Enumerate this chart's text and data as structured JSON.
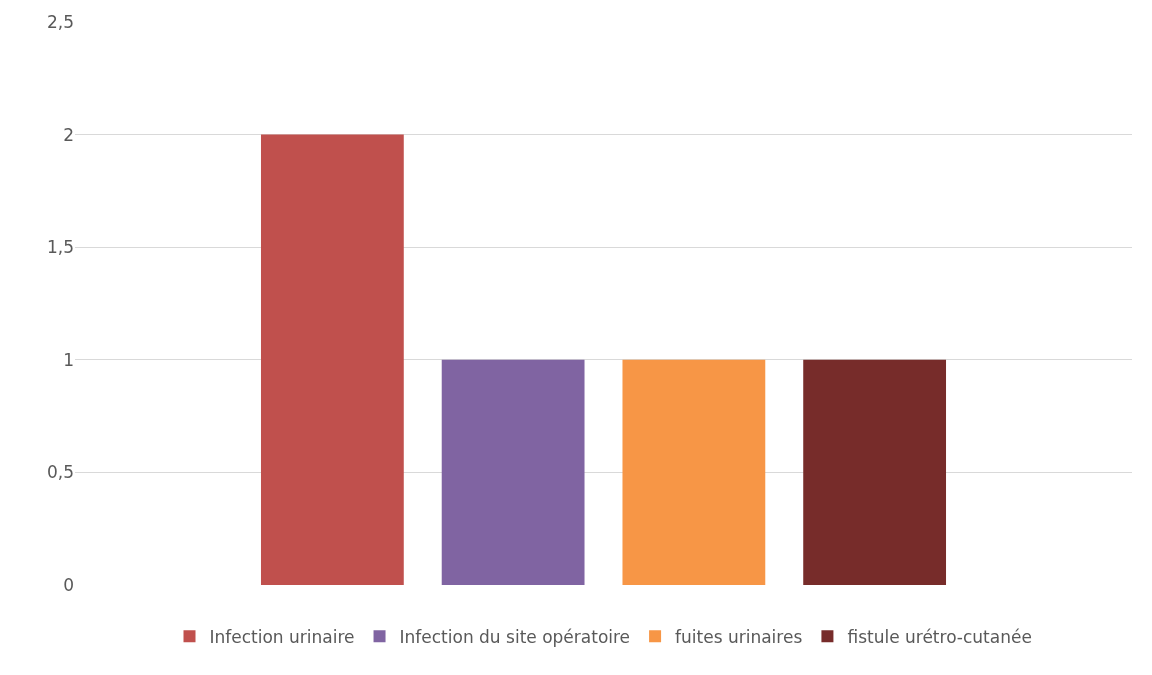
{
  "chart_data": {
    "type": "bar",
    "categories": [
      null
    ],
    "series": [
      {
        "name": "Infection urinaire",
        "color": "#c0504d",
        "values": [
          2
        ]
      },
      {
        "name": "Infection du site opératoire",
        "color": "#8064a2",
        "values": [
          1
        ]
      },
      {
        "name": "fuites urinaires",
        "color": "#f79646",
        "values": [
          1
        ]
      },
      {
        "name": "fistule urétro-cutanée",
        "color": "#772c2a",
        "values": [
          1
        ]
      }
    ],
    "ylim": [
      0,
      2.5
    ],
    "yticks": [
      0,
      {
        "value": 0.5,
        "label": "0,5"
      },
      1,
      {
        "value": 1.5,
        "label": "1,5"
      },
      2,
      {
        "value": 2.5,
        "label": "2,5"
      }
    ],
    "grid": "y",
    "legend": "bottom",
    "tick_labels": "y"
  }
}
